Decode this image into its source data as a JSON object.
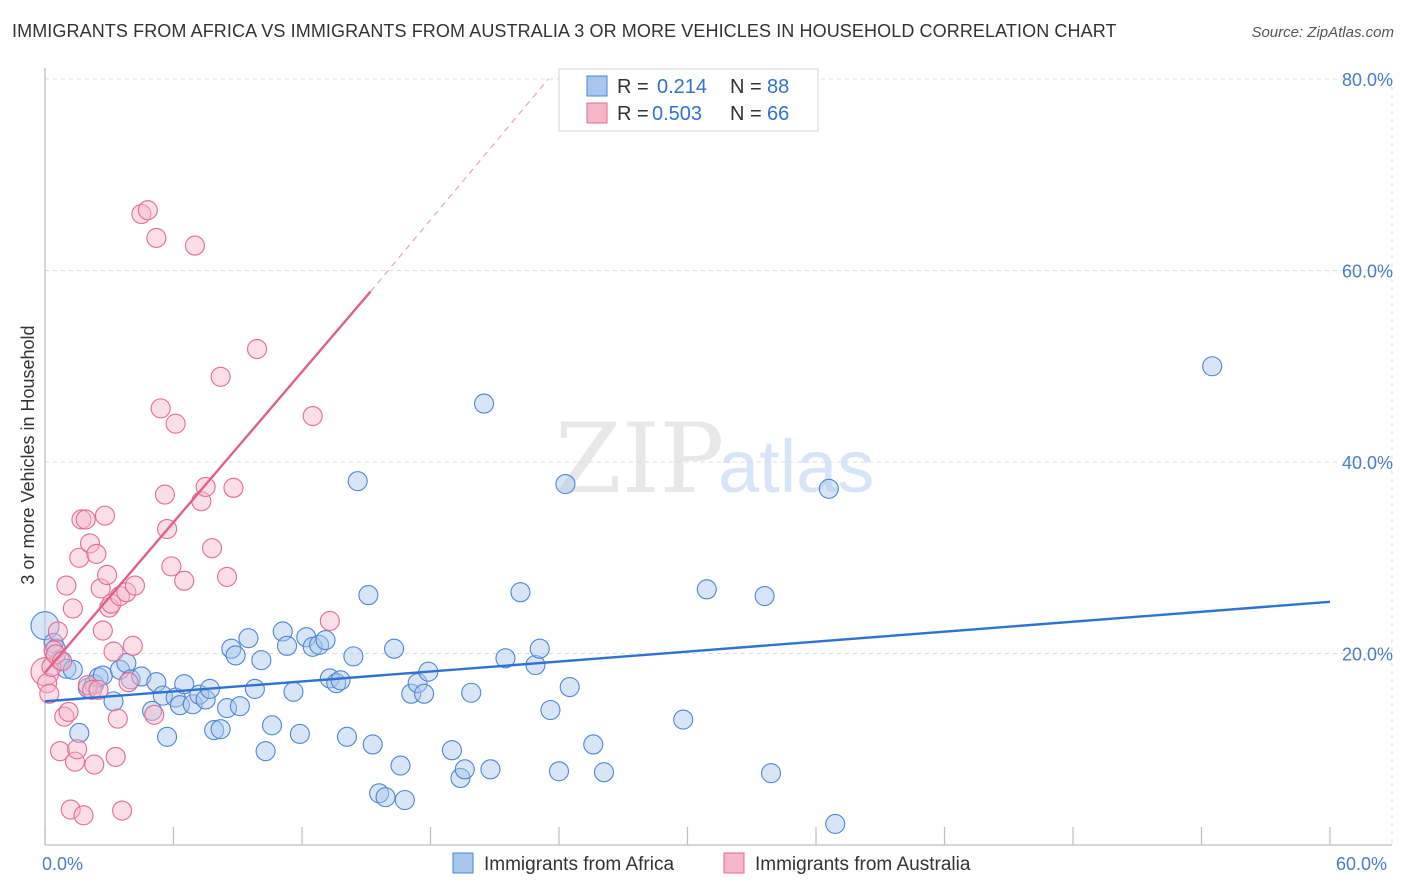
{
  "title": "IMMIGRANTS FROM AFRICA VS IMMIGRANTS FROM AUSTRALIA 3 OR MORE VEHICLES IN HOUSEHOLD CORRELATION CHART",
  "source": "Source: ZipAtlas.com",
  "watermark": {
    "zip": "ZIP",
    "atlas": "atlas"
  },
  "legend_stats": [
    {
      "r_label": "R =",
      "r_value": "0.214",
      "n_label": "N =",
      "n_value": "88"
    },
    {
      "r_label": "R =",
      "r_value": "0.503",
      "n_label": "N =",
      "n_value": "66"
    }
  ],
  "colors": {
    "africa_fill": "#a9c6ee",
    "africa_stroke": "#4f86d1",
    "africa_line": "#2f72d1",
    "australia_fill": "#f6b6ca",
    "australia_stroke": "#e36b95",
    "australia_line": "#e0608b",
    "tick_label": "#4a7cc9"
  },
  "chart_data": {
    "type": "scatter",
    "xlabel": "",
    "ylabel": "3 or more Vehicles in Household",
    "xlim": [
      0,
      60
    ],
    "ylim": [
      0,
      80
    ],
    "x_tick_labels": [
      "0.0%",
      "60.0%"
    ],
    "y_ticks": [
      20,
      40,
      60,
      80
    ],
    "y_tick_labels": [
      "20.0%",
      "40.0%",
      "60.0%",
      "80.0%"
    ],
    "grid": true,
    "legend_position": "top-center",
    "series": [
      {
        "name": "Immigrants from Africa",
        "r": 0.214,
        "n": 88,
        "trend": {
          "x0": 0,
          "y0": 15.0,
          "x1": 60,
          "y1": 25.4
        },
        "points": [
          [
            0,
            22.9
          ],
          [
            0.4,
            21.1
          ],
          [
            0.5,
            20.5
          ],
          [
            0.7,
            19.3
          ],
          [
            1.0,
            18.4
          ],
          [
            1.3,
            18.3
          ],
          [
            1.6,
            11.7
          ],
          [
            2.0,
            16.4
          ],
          [
            2.3,
            16.8
          ],
          [
            2.5,
            17.5
          ],
          [
            2.7,
            17.7
          ],
          [
            3.2,
            15.0
          ],
          [
            3.5,
            18.3
          ],
          [
            3.8,
            19.0
          ],
          [
            4.0,
            17.3
          ],
          [
            4.5,
            17.6
          ],
          [
            5.0,
            14.0
          ],
          [
            5.2,
            17.0
          ],
          [
            5.5,
            15.6
          ],
          [
            5.7,
            11.3
          ],
          [
            6.1,
            15.4
          ],
          [
            6.3,
            14.6
          ],
          [
            6.5,
            16.8
          ],
          [
            6.9,
            14.7
          ],
          [
            7.2,
            15.7
          ],
          [
            7.5,
            15.2
          ],
          [
            7.7,
            16.3
          ],
          [
            7.9,
            12.0
          ],
          [
            8.2,
            12.1
          ],
          [
            8.5,
            14.3
          ],
          [
            8.7,
            20.5
          ],
          [
            8.9,
            19.8
          ],
          [
            9.1,
            14.5
          ],
          [
            9.5,
            21.6
          ],
          [
            9.8,
            16.3
          ],
          [
            10.1,
            19.3
          ],
          [
            10.3,
            9.8
          ],
          [
            10.6,
            12.5
          ],
          [
            11.1,
            22.3
          ],
          [
            11.3,
            20.8
          ],
          [
            11.6,
            16.0
          ],
          [
            11.9,
            11.6
          ],
          [
            12.2,
            21.7
          ],
          [
            12.5,
            20.7
          ],
          [
            12.8,
            20.9
          ],
          [
            13.1,
            21.4
          ],
          [
            13.3,
            17.4
          ],
          [
            13.6,
            16.9
          ],
          [
            13.8,
            17.2
          ],
          [
            14.1,
            11.3
          ],
          [
            14.4,
            19.7
          ],
          [
            14.6,
            38.0
          ],
          [
            15.1,
            26.1
          ],
          [
            15.3,
            10.5
          ],
          [
            15.6,
            5.4
          ],
          [
            15.9,
            5.0
          ],
          [
            16.3,
            20.5
          ],
          [
            16.6,
            8.3
          ],
          [
            16.8,
            4.7
          ],
          [
            17.1,
            15.8
          ],
          [
            17.4,
            16.9
          ],
          [
            17.7,
            15.8
          ],
          [
            17.9,
            18.1
          ],
          [
            19.0,
            9.9
          ],
          [
            19.4,
            7.0
          ],
          [
            19.6,
            7.9
          ],
          [
            19.9,
            15.9
          ],
          [
            20.5,
            46.1
          ],
          [
            20.8,
            7.9
          ],
          [
            21.5,
            19.5
          ],
          [
            22.2,
            26.4
          ],
          [
            22.9,
            18.8
          ],
          [
            23.1,
            20.5
          ],
          [
            23.6,
            14.1
          ],
          [
            24.0,
            7.7
          ],
          [
            24.3,
            37.7
          ],
          [
            24.5,
            16.5
          ],
          [
            25.6,
            10.5
          ],
          [
            26.1,
            7.6
          ],
          [
            29.8,
            13.1
          ],
          [
            30.9,
            26.7
          ],
          [
            33.6,
            26.0
          ],
          [
            33.9,
            7.5
          ],
          [
            36.6,
            37.2
          ],
          [
            36.9,
            2.2
          ],
          [
            54.5,
            50.0
          ]
        ]
      },
      {
        "name": "Immigrants from Australia",
        "r": 0.503,
        "n": 66,
        "trend": {
          "x0": 0,
          "y0": 18.0,
          "x1": 15.2,
          "y1": 57.8,
          "dashed_to": {
            "x": 23.5,
            "y": 80.0
          }
        },
        "points": [
          [
            0,
            18.1
          ],
          [
            0.1,
            16.9
          ],
          [
            0.2,
            15.8
          ],
          [
            0.3,
            18.6
          ],
          [
            0.4,
            20.3
          ],
          [
            0.5,
            19.9
          ],
          [
            0.6,
            22.3
          ],
          [
            0.7,
            9.8
          ],
          [
            0.8,
            19.2
          ],
          [
            0.9,
            13.4
          ],
          [
            1.0,
            27.1
          ],
          [
            1.1,
            13.9
          ],
          [
            1.2,
            3.7
          ],
          [
            1.3,
            24.7
          ],
          [
            1.4,
            8.7
          ],
          [
            1.5,
            10.0
          ],
          [
            1.6,
            30.0
          ],
          [
            1.7,
            34.0
          ],
          [
            1.8,
            3.1
          ],
          [
            1.9,
            34.0
          ],
          [
            2.0,
            16.7
          ],
          [
            2.1,
            31.5
          ],
          [
            2.2,
            16.2
          ],
          [
            2.3,
            8.4
          ],
          [
            2.4,
            30.4
          ],
          [
            2.5,
            16.2
          ],
          [
            2.6,
            26.8
          ],
          [
            2.7,
            22.4
          ],
          [
            2.8,
            34.4
          ],
          [
            2.9,
            28.2
          ],
          [
            3.0,
            24.8
          ],
          [
            3.1,
            25.2
          ],
          [
            3.2,
            20.2
          ],
          [
            3.3,
            9.2
          ],
          [
            3.4,
            13.2
          ],
          [
            3.5,
            26.0
          ],
          [
            3.6,
            3.6
          ],
          [
            3.8,
            26.4
          ],
          [
            3.9,
            17.0
          ],
          [
            4.1,
            20.8
          ],
          [
            4.2,
            27.1
          ],
          [
            4.5,
            65.9
          ],
          [
            4.8,
            66.3
          ],
          [
            5.1,
            13.6
          ],
          [
            5.2,
            63.4
          ],
          [
            5.4,
            45.6
          ],
          [
            5.6,
            36.6
          ],
          [
            5.7,
            33.0
          ],
          [
            5.9,
            29.1
          ],
          [
            6.1,
            44.0
          ],
          [
            6.5,
            27.6
          ],
          [
            7.0,
            62.6
          ],
          [
            7.3,
            35.9
          ],
          [
            7.5,
            37.4
          ],
          [
            7.8,
            31.0
          ],
          [
            8.2,
            48.9
          ],
          [
            8.5,
            28.0
          ],
          [
            8.8,
            37.3
          ],
          [
            9.9,
            51.8
          ],
          [
            12.5,
            44.8
          ],
          [
            13.3,
            23.4
          ]
        ]
      }
    ]
  }
}
